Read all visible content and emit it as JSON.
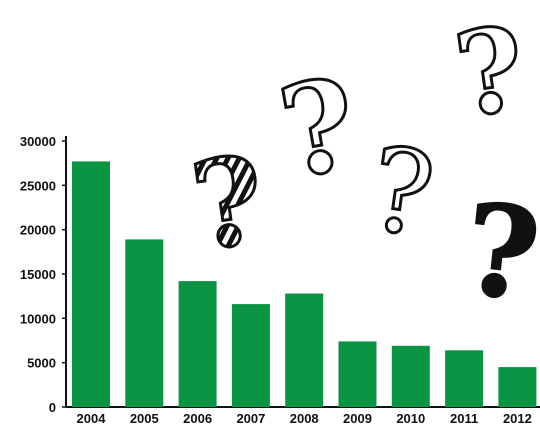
{
  "chart_data": {
    "type": "bar",
    "categories": [
      "2004",
      "2005",
      "2006",
      "2007",
      "2008",
      "2009",
      "2010",
      "2011",
      "2012"
    ],
    "values": [
      27700,
      18900,
      14200,
      11600,
      12800,
      7400,
      6900,
      6400,
      4500
    ],
    "ylim": [
      0,
      30000
    ],
    "yticks": [
      "0",
      "5000",
      "10000",
      "15000",
      "20000",
      "25000",
      "30000"
    ],
    "grid": false,
    "legend": "none",
    "bar_color": "#0a9444",
    "axis_color": "#111111"
  },
  "decorations": {
    "question_marks": [
      {
        "glyph": "?",
        "style": "striped"
      },
      {
        "glyph": "?",
        "style": "outline"
      },
      {
        "glyph": "?",
        "style": "thin"
      },
      {
        "glyph": "?",
        "style": "outline"
      },
      {
        "glyph": "?",
        "style": "scribble"
      }
    ]
  }
}
